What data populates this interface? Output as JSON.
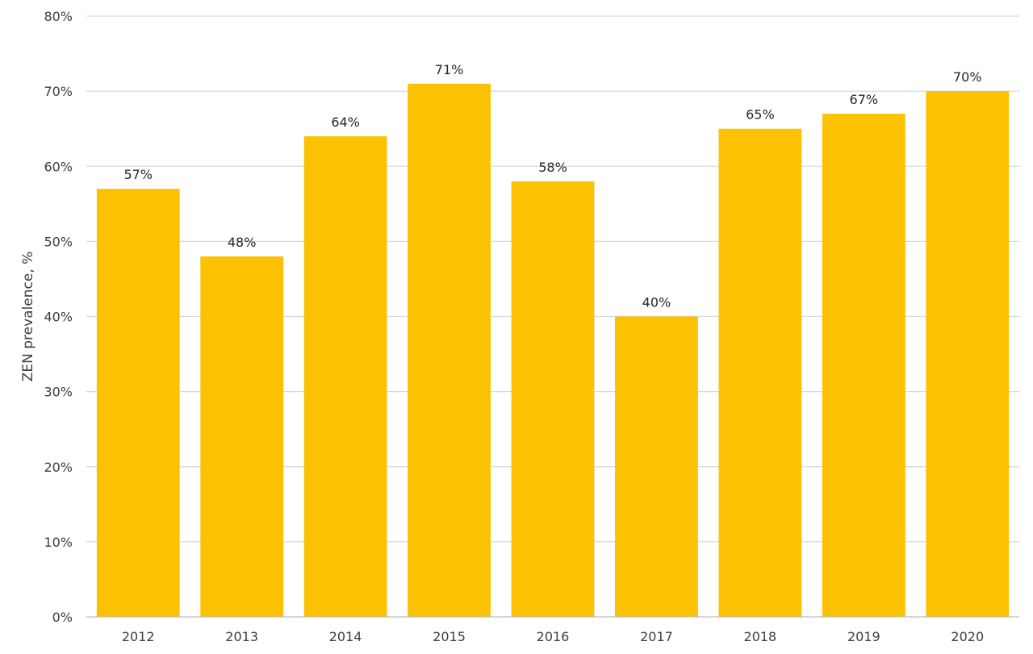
{
  "chart_data": {
    "type": "bar",
    "title": "",
    "xlabel": "",
    "ylabel": "ZEN prevalence, %",
    "categories": [
      "2012",
      "2013",
      "2014",
      "2015",
      "2016",
      "2017",
      "2018",
      "2019",
      "2020"
    ],
    "values": [
      57,
      48,
      64,
      71,
      58,
      40,
      65,
      67,
      70
    ],
    "data_labels": [
      "57%",
      "48%",
      "64%",
      "71%",
      "58%",
      "40%",
      "65%",
      "67%",
      "70%"
    ],
    "ylim": [
      0,
      80
    ],
    "yticks": [
      0,
      10,
      20,
      30,
      40,
      50,
      60,
      70,
      80
    ],
    "ytick_labels": [
      "0%",
      "10%",
      "20%",
      "30%",
      "40%",
      "50%",
      "60%",
      "70%",
      "80%"
    ],
    "grid": true,
    "legend": "none",
    "colors": {
      "bar": "#FBC102"
    }
  }
}
